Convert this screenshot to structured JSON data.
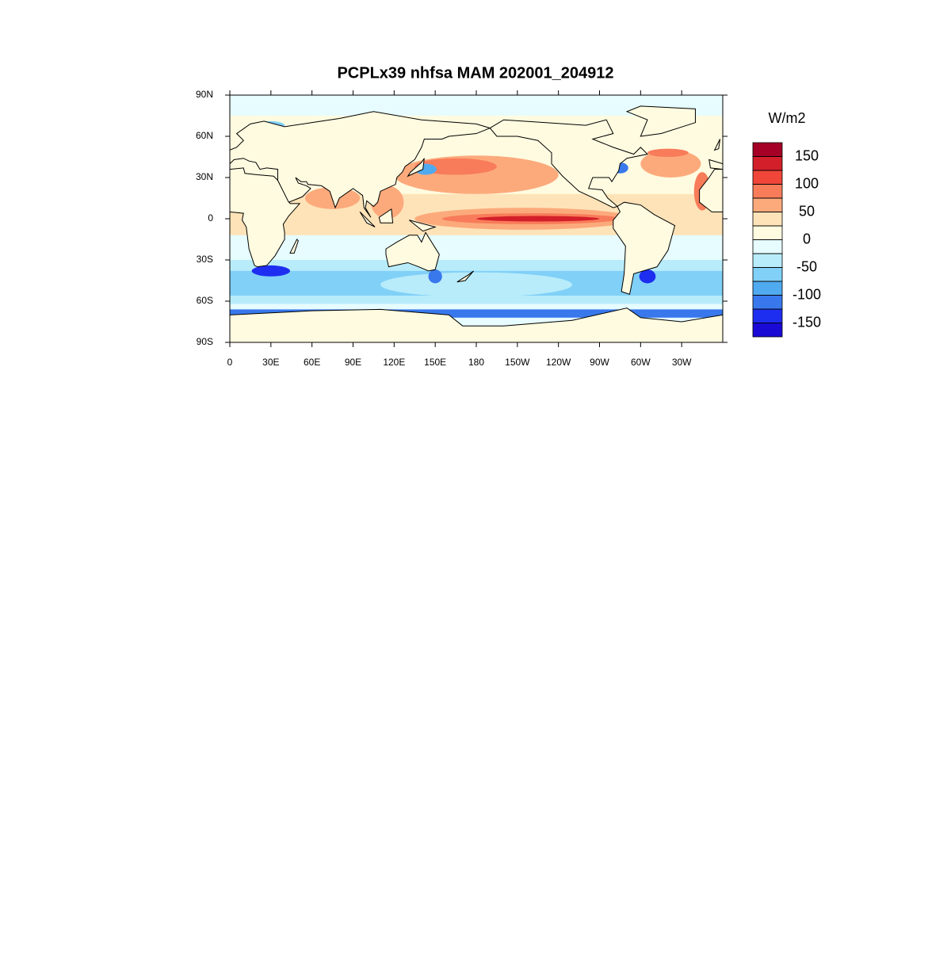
{
  "chart_data": {
    "type": "contour-map",
    "title": "PCPLx39 nhfsa MAM 202001_204912",
    "xlim": [
      0,
      360
    ],
    "ylim": [
      -90,
      90
    ],
    "xticks": [
      0,
      {
        "value": 30,
        "label": "30E"
      },
      {
        "value": 60,
        "label": "60E"
      },
      {
        "value": 90,
        "label": "90E"
      },
      {
        "value": 120,
        "label": "120E"
      },
      {
        "value": 150,
        "label": "150E"
      },
      180,
      {
        "value": 210,
        "label": "150W"
      },
      {
        "value": 240,
        "label": "120W"
      },
      {
        "value": 270,
        "label": "90W"
      },
      {
        "value": 300,
        "label": "60W"
      },
      {
        "value": 330,
        "label": "30W"
      }
    ],
    "yticks": [
      {
        "value": -90,
        "label": "90S"
      },
      {
        "value": -60,
        "label": "60S"
      },
      {
        "value": -30,
        "label": "30S"
      },
      0,
      {
        "value": 30,
        "label": "30N"
      },
      {
        "value": 60,
        "label": "60N"
      },
      {
        "value": 90,
        "label": "90N"
      }
    ],
    "colorbar": {
      "title": "W/m2",
      "levels": [
        -150,
        -125,
        -100,
        -75,
        -50,
        -25,
        0,
        25,
        50,
        75,
        100,
        125,
        150
      ],
      "colors": [
        "#1a0ad6",
        "#1e2ef0",
        "#3878ec",
        "#50aaf0",
        "#80d0f8",
        "#b8ecfa",
        "#e6fcff",
        "#fffbe0",
        "#fee3b8",
        "#fcaa7c",
        "#f87c5a",
        "#f0463a",
        "#d31f2a",
        "#a50026"
      ],
      "ticks": [
        -150,
        -100,
        -50,
        0,
        50,
        100,
        150
      ]
    }
  }
}
